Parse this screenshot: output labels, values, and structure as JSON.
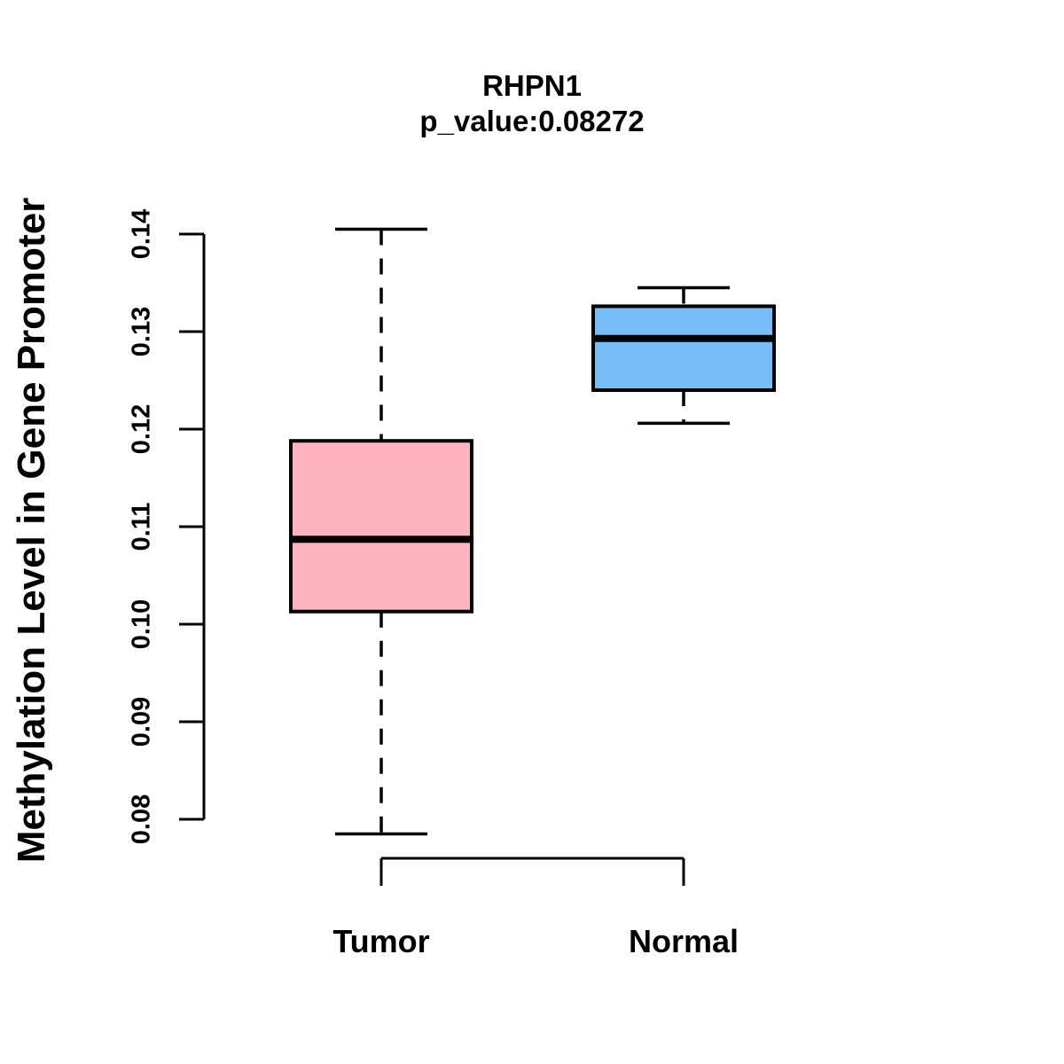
{
  "chart_data": {
    "type": "boxplot",
    "title": "RHPN1",
    "subtitle": "p_value:0.08272",
    "ylabel": "Methylation Level in Gene Promoter",
    "xlabel": "",
    "categories": [
      "Tumor",
      "Normal"
    ],
    "yaxis": {
      "ticks": [
        0.08,
        0.09,
        0.1,
        0.11,
        0.12,
        0.13,
        0.14
      ],
      "tick_labels": [
        "0.08",
        "0.09",
        "0.10",
        "0.11",
        "0.12",
        "0.13",
        "0.14"
      ]
    },
    "series": [
      {
        "name": "Tumor",
        "fill_color": "#FFB3C1",
        "border_color": "#000000",
        "whisker_low": 0.0785,
        "q1": 0.1013,
        "median": 0.1087,
        "q3": 0.1188,
        "whisker_high": 0.1405
      },
      {
        "name": "Normal",
        "fill_color": "#76BEF5",
        "border_color": "#000000",
        "whisker_low": 0.1206,
        "q1": 0.124,
        "median": 0.1293,
        "q3": 0.1326,
        "whisker_high": 0.1345
      }
    ],
    "legend": "none",
    "grid": false,
    "background_color": "#FFFFFF",
    "text_color": "#000000"
  }
}
